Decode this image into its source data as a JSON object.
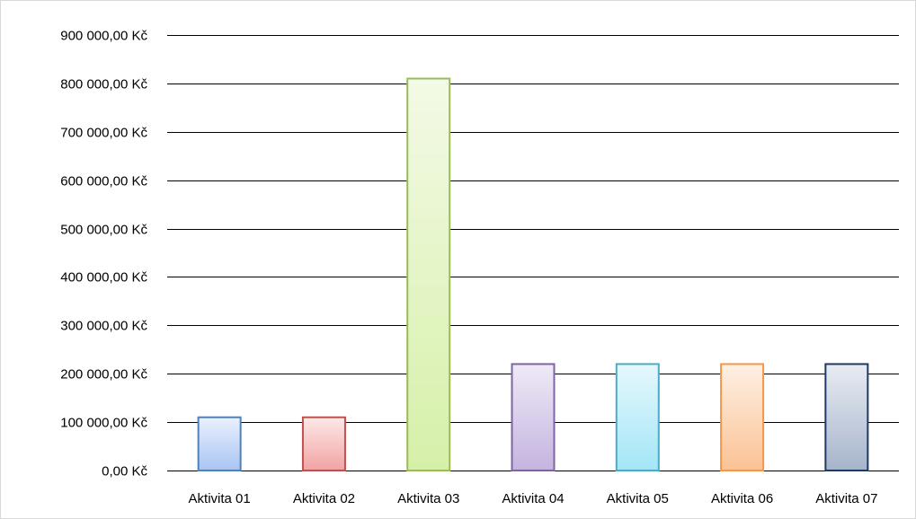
{
  "chart_data": {
    "type": "bar",
    "categories": [
      "Aktivita 01",
      "Aktivita 02",
      "Aktivita 03",
      "Aktivita 04",
      "Aktivita 05",
      "Aktivita 06",
      "Aktivita 07"
    ],
    "values": [
      110000,
      110000,
      810000,
      220000,
      220000,
      220000,
      220000
    ],
    "ylim": [
      0,
      900000
    ],
    "yticks": [
      0,
      100000,
      200000,
      300000,
      400000,
      500000,
      600000,
      700000,
      800000,
      900000
    ],
    "ytick_labels": [
      "0,00 Kč",
      "100 000,00 Kč",
      "200 000,00 Kč",
      "300 000,00 Kč",
      "400 000,00 Kč",
      "500 000,00 Kč",
      "600 000,00 Kč",
      "700 000,00 Kč",
      "800 000,00 Kč",
      "900 000,00 Kč"
    ],
    "grid": true,
    "legend": "none",
    "bar_colors": [
      {
        "top": "#eaf1fd",
        "bottom": "#a9c4f3",
        "stroke": "#4f81bd"
      },
      {
        "top": "#fde8e8",
        "bottom": "#f2a3a3",
        "stroke": "#c0504d"
      },
      {
        "top": "#f3fae6",
        "bottom": "#d6f0a8",
        "stroke": "#9bbb59"
      },
      {
        "top": "#eeeaf6",
        "bottom": "#c5b4e0",
        "stroke": "#8064a2"
      },
      {
        "top": "#e6f8fc",
        "bottom": "#a3e6f7",
        "stroke": "#4bacc6"
      },
      {
        "top": "#fef0e4",
        "bottom": "#fbc294",
        "stroke": "#f79646"
      },
      {
        "top": "#e8ecf3",
        "bottom": "#a6b4cb",
        "stroke": "#1f3864"
      }
    ]
  }
}
